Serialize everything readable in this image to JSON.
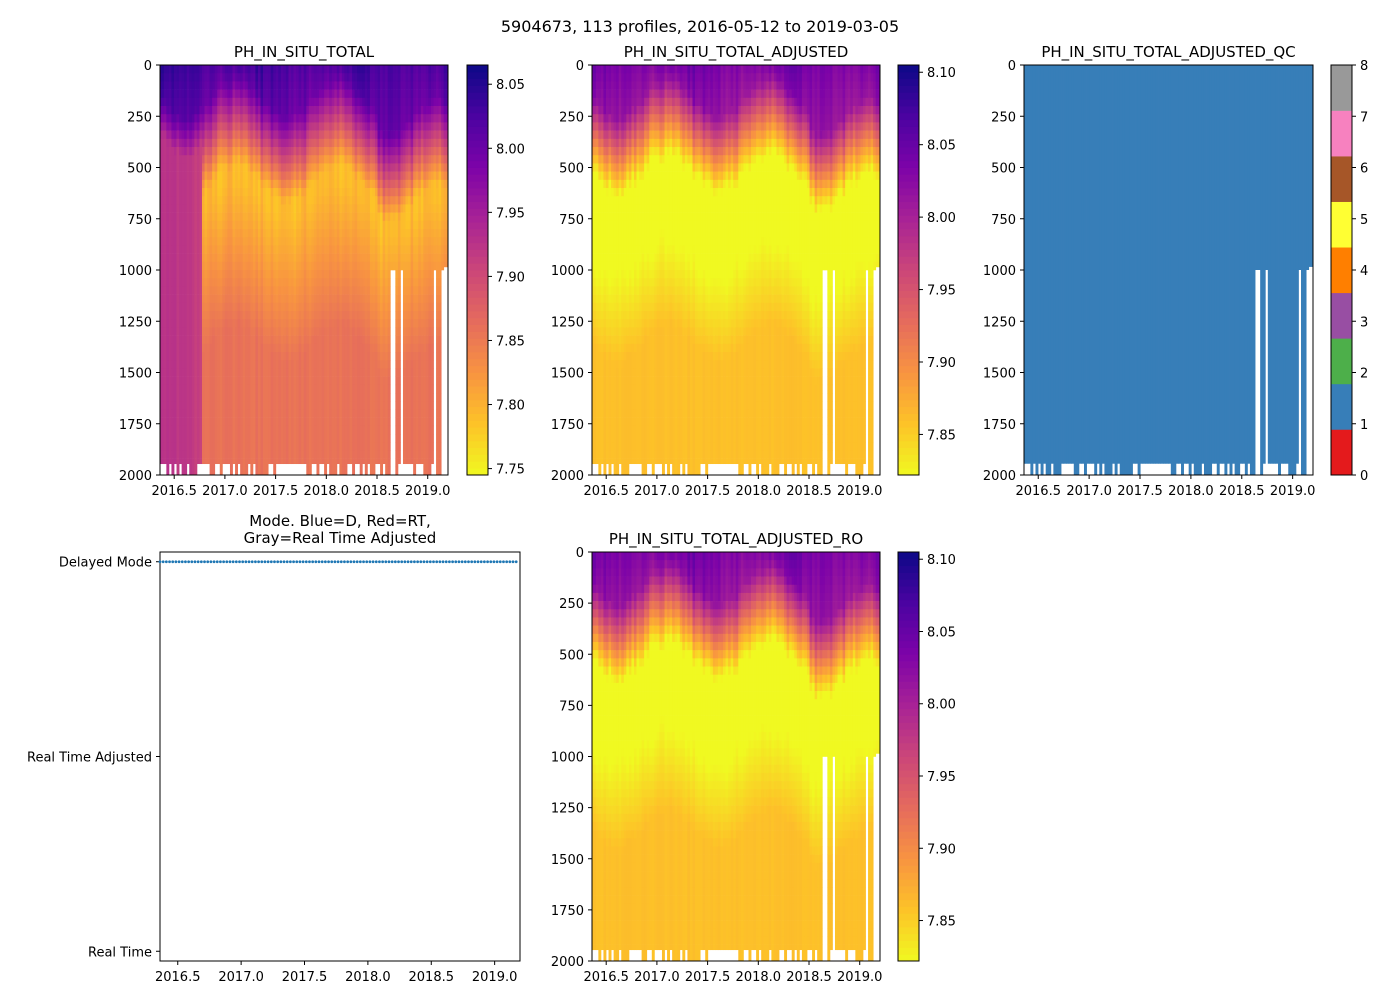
{
  "figure": {
    "suptitle": "5904673, 113 profiles, 2016-05-12 to 2019-03-05"
  },
  "chart_data": [
    {
      "id": "ph_raw",
      "type": "heatmap",
      "title": "PH_IN_SITU_TOTAL",
      "x_range": [
        2016.36,
        2019.2
      ],
      "x_ticks": [
        "2016.5",
        "2017.0",
        "2017.5",
        "2018.0",
        "2018.5",
        "2019.0"
      ],
      "y_range": [
        0,
        2000
      ],
      "y_inverted": true,
      "y_ticks": [
        "0",
        "250",
        "500",
        "750",
        "1000",
        "1250",
        "1500",
        "1750",
        "2000"
      ],
      "colormap": "plasma_r",
      "clim": [
        7.745,
        8.065
      ],
      "colorbar_ticks": [
        "7.75",
        "7.80",
        "7.85",
        "7.90",
        "7.95",
        "8.00",
        "8.05"
      ]
    },
    {
      "id": "ph_adj",
      "type": "heatmap",
      "title": "PH_IN_SITU_TOTAL_ADJUSTED",
      "x_range": [
        2016.36,
        2019.2
      ],
      "x_ticks": [
        "2016.5",
        "2017.0",
        "2017.5",
        "2018.0",
        "2018.5",
        "2019.0"
      ],
      "y_range": [
        0,
        2000
      ],
      "y_inverted": true,
      "y_ticks": [
        "0",
        "250",
        "500",
        "750",
        "1000",
        "1250",
        "1500",
        "1750",
        "2000"
      ],
      "colormap": "plasma_r",
      "clim": [
        7.822,
        8.105
      ],
      "colorbar_ticks": [
        "7.85",
        "7.90",
        "7.95",
        "8.00",
        "8.05",
        "8.10"
      ]
    },
    {
      "id": "ph_qc",
      "type": "heatmap",
      "title": "PH_IN_SITU_TOTAL_ADJUSTED_QC",
      "x_range": [
        2016.36,
        2019.2
      ],
      "x_ticks": [
        "2016.5",
        "2017.0",
        "2017.5",
        "2018.0",
        "2018.5",
        "2019.0"
      ],
      "y_range": [
        0,
        2000
      ],
      "y_inverted": true,
      "y_ticks": [
        "0",
        "250",
        "500",
        "750",
        "1000",
        "1250",
        "1500",
        "1750",
        "2000"
      ],
      "qc_value": 1,
      "qc_colors": [
        "#e41a1c",
        "#377eb8",
        "#4daf4a",
        "#984ea3",
        "#ff7f00",
        "#ffff33",
        "#a65628",
        "#f781bf",
        "#999999"
      ],
      "clim": [
        0,
        8
      ],
      "colorbar_ticks": [
        "0",
        "1",
        "2",
        "3",
        "4",
        "5",
        "6",
        "7",
        "8"
      ]
    },
    {
      "id": "mode",
      "type": "scatter",
      "title": "Mode. Blue=D, Red=RT,\nGray=Real Time Adjusted",
      "x_range": [
        2016.36,
        2019.2
      ],
      "x_ticks": [
        "2016.5",
        "2017.0",
        "2017.5",
        "2018.0",
        "2018.5",
        "2019.0"
      ],
      "y_categories": [
        "Real Time",
        "Real Time Adjusted",
        "Delayed Mode"
      ],
      "y_range": [
        -0.05,
        2.05
      ],
      "series": [
        {
          "name": "Delayed Mode",
          "category": "Delayed Mode",
          "color": "#1f77b4",
          "count": 113
        }
      ]
    },
    {
      "id": "ph_ro",
      "type": "heatmap",
      "title": "PH_IN_SITU_TOTAL_ADJUSTED_RO",
      "x_range": [
        2016.36,
        2019.2
      ],
      "x_ticks": [
        "2016.5",
        "2017.0",
        "2017.5",
        "2018.0",
        "2018.5",
        "2019.0"
      ],
      "y_range": [
        0,
        2000
      ],
      "y_inverted": true,
      "y_ticks": [
        "0",
        "250",
        "500",
        "750",
        "1000",
        "1250",
        "1500",
        "1750",
        "2000"
      ],
      "colormap": "plasma_r",
      "clim": [
        7.822,
        8.105
      ],
      "colorbar_ticks": [
        "7.85",
        "7.90",
        "7.95",
        "8.00",
        "8.05",
        "8.10"
      ]
    }
  ],
  "profiles": {
    "count": 113,
    "start_decimal_year": 2016.36,
    "end_decimal_year": 2019.17,
    "shallow_profiles_max_depth_m": 1000,
    "shallow_profile_years": [
      2018.65,
      2018.67,
      2018.74,
      2019.08,
      2019.15
    ],
    "surface_ph": 8.05,
    "deep_ph_raw": 7.87,
    "deep_ph_adjusted": 7.86
  }
}
